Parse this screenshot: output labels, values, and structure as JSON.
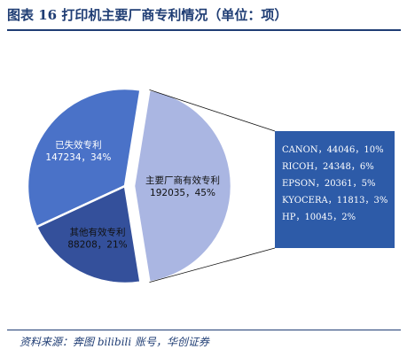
{
  "title": "图表 16   打印机主要厂商专利情况（单位：项）",
  "source": "资料来源：奔图 bilibili 账号，华创证券",
  "colors": {
    "expired": "#4a72c8",
    "other_valid": "#34509b",
    "major_valid": "#aab6e2",
    "breakdown_box": "#2d5ba8",
    "connector": "#111111"
  },
  "chart_data": {
    "type": "pie",
    "slices": [
      {
        "name": "已失效专利",
        "value": 147234,
        "percent": "34%",
        "label_line1": "已失效专利",
        "label_line2": "147234，34%"
      },
      {
        "name": "其他有效专利",
        "value": 88208,
        "percent": "21%",
        "label_line1": "其他有效专利",
        "label_line2": "88208，21%"
      },
      {
        "name": "主要厂商有效专利",
        "value": 192035,
        "percent": "45%",
        "label_line1": "主要厂商有效专利",
        "label_line2": "192035，45%"
      }
    ],
    "breakdown_of": "主要厂商有效专利",
    "breakdown": [
      {
        "name": "CANON",
        "value": 44046,
        "percent": "10%",
        "label": "CANON，44046，10%"
      },
      {
        "name": "RICOH",
        "value": 24348,
        "percent": "6%",
        "label": "RICOH，24348，6%"
      },
      {
        "name": "EPSON",
        "value": 20361,
        "percent": "5%",
        "label": "EPSON，20361，5%"
      },
      {
        "name": "KYOCERA",
        "value": 11813,
        "percent": "3%",
        "label": "KYOCERA，11813，3%"
      },
      {
        "name": "HP",
        "value": 10045,
        "percent": "2%",
        "label": "HP，10045，2%"
      }
    ]
  }
}
